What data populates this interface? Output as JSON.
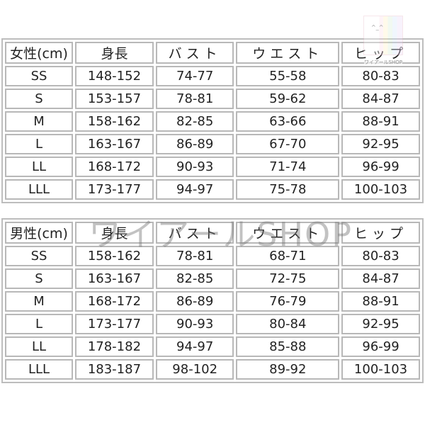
{
  "logo": {
    "text": "ワイアールSHOP",
    "face": "^_^"
  },
  "watermark": "ワイアールSHOP",
  "tables": [
    {
      "header": [
        "女性(cm)",
        "身長",
        "バスト",
        "ウエスト",
        "ヒップ"
      ],
      "rows": [
        [
          "SS",
          "148-152",
          "74-77",
          "55-58",
          "80-83"
        ],
        [
          "S",
          "153-157",
          "78-81",
          "59-62",
          "84-87"
        ],
        [
          "M",
          "158-162",
          "82-85",
          "63-66",
          "88-91"
        ],
        [
          "L",
          "163-167",
          "86-89",
          "67-70",
          "92-95"
        ],
        [
          "LL",
          "168-172",
          "90-93",
          "71-74",
          "96-99"
        ],
        [
          "LLL",
          "173-177",
          "94-97",
          "75-78",
          "100-103"
        ]
      ]
    },
    {
      "header": [
        "男性(cm)",
        "身長",
        "バスト",
        "ウエスト",
        "ヒップ"
      ],
      "rows": [
        [
          "SS",
          "158-162",
          "78-81",
          "68-71",
          "80-83"
        ],
        [
          "S",
          "163-167",
          "82-85",
          "72-75",
          "84-87"
        ],
        [
          "M",
          "168-172",
          "86-89",
          "76-79",
          "88-91"
        ],
        [
          "L",
          "173-177",
          "90-93",
          "80-84",
          "92-95"
        ],
        [
          "LL",
          "178-182",
          "94-97",
          "85-88",
          "96-99"
        ],
        [
          "LLL",
          "183-187",
          "98-102",
          "89-92",
          "100-103"
        ]
      ]
    }
  ]
}
